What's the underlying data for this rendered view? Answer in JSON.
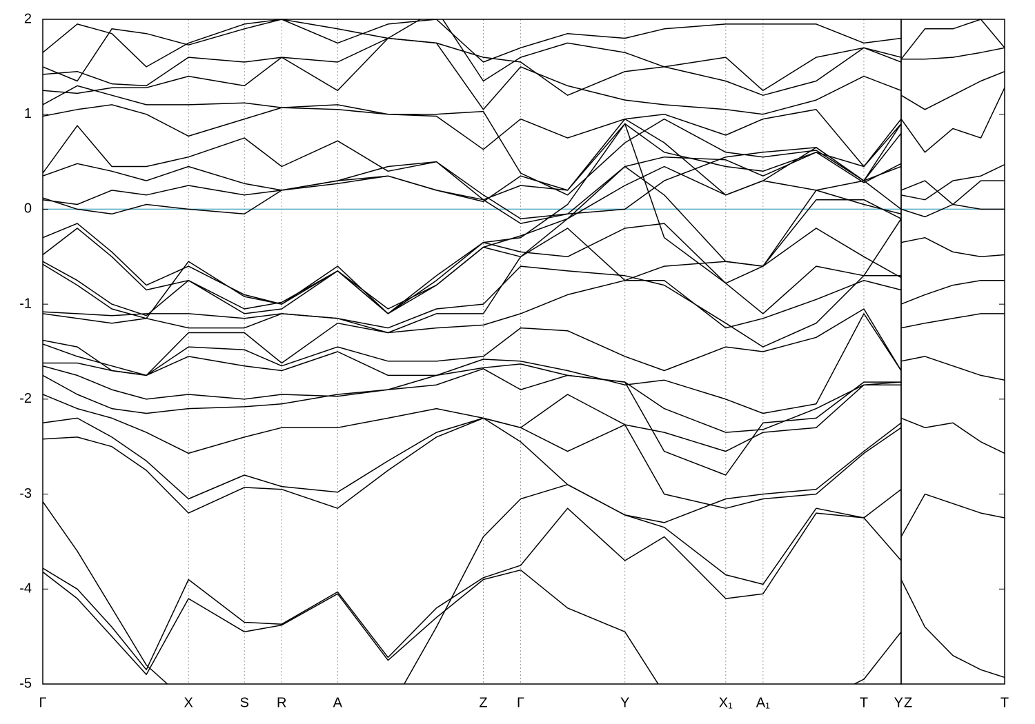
{
  "chart_data": [
    {
      "type": "line",
      "color": "#000000",
      "grid": true,
      "hline": 0,
      "hline_color": "#5aaec8",
      "x": [
        0,
        0.5,
        1.0,
        1.5,
        2.11,
        2.92,
        3.46,
        4.27,
        5.0,
        5.7,
        6.38,
        6.92,
        7.6,
        8.43,
        9.0,
        9.89,
        10.43,
        11.2,
        11.89,
        12.43
      ],
      "xlim": [
        0,
        12.43
      ],
      "xticks": [
        {
          "value": 0,
          "label": "Γ"
        },
        {
          "value": 2.11,
          "label": "X"
        },
        {
          "value": 2.92,
          "label": "S"
        },
        {
          "value": 3.46,
          "label": "R"
        },
        {
          "value": 4.27,
          "label": "A"
        },
        {
          "value": 6.38,
          "label": "Z"
        },
        {
          "value": 6.92,
          "label": "Γ"
        },
        {
          "value": 8.43,
          "label": "Y"
        },
        {
          "value": 9.89,
          "label": "X₁"
        },
        {
          "value": 10.43,
          "label": "A₁"
        },
        {
          "value": 11.89,
          "label": "T"
        },
        {
          "value": 12.43,
          "label": "Y"
        }
      ],
      "ylim": [
        -5,
        2
      ],
      "yticks": [
        -5,
        -4,
        -3,
        -2,
        -1,
        0,
        1,
        2
      ],
      "series": [
        {
          "values": [
            -3.82,
            -4.1,
            -4.5,
            -4.9,
            -4.1,
            -4.45,
            -4.38,
            -4.05,
            -4.75,
            -4.3,
            -3.9,
            -3.8,
            -4.2,
            -4.45,
            -5.1,
            -5.5,
            -5.5,
            -5.2,
            -4.95,
            -4.45
          ]
        },
        {
          "values": [
            -3.78,
            -4.0,
            -4.4,
            -4.85,
            -3.9,
            -4.35,
            -4.37,
            -4.03,
            -4.72,
            -4.2,
            -3.88,
            -3.75,
            -3.15,
            -3.7,
            -3.45,
            -4.1,
            -4.05,
            -3.2,
            -3.25,
            -3.7
          ]
        },
        {
          "values": [
            -3.08,
            -3.6,
            -4.2,
            -4.8,
            -5.2,
            -5.5,
            -5.5,
            -5.5,
            -5.3,
            -4.4,
            -3.45,
            -3.05,
            -2.9,
            -3.22,
            -3.35,
            -3.85,
            -3.95,
            -3.15,
            -3.25,
            -2.95
          ]
        },
        {
          "values": [
            -2.42,
            -2.4,
            -2.5,
            -2.75,
            -3.2,
            -2.93,
            -2.95,
            -3.15,
            -2.75,
            -2.4,
            -2.2,
            -2.45,
            -2.9,
            -3.22,
            -3.3,
            -3.05,
            -3.0,
            -2.95,
            -2.55,
            -2.25
          ]
        },
        {
          "values": [
            -2.25,
            -2.2,
            -2.4,
            -2.65,
            -3.05,
            -2.8,
            -2.92,
            -2.98,
            -2.65,
            -2.35,
            -2.2,
            -2.3,
            -2.55,
            -2.27,
            -3.0,
            -3.15,
            -3.05,
            -3.0,
            -2.57,
            -2.3
          ]
        },
        {
          "values": [
            -1.95,
            -2.1,
            -2.2,
            -2.35,
            -2.57,
            -2.4,
            -2.3,
            -2.3,
            -2.2,
            -2.1,
            -2.2,
            -2.3,
            -1.95,
            -2.27,
            -2.35,
            -2.55,
            -2.35,
            -2.3,
            -1.85,
            -1.85
          ]
        },
        {
          "values": [
            -1.75,
            -1.95,
            -2.1,
            -2.15,
            -2.1,
            -2.08,
            -2.05,
            -1.95,
            -1.9,
            -1.85,
            -1.68,
            -1.9,
            -1.75,
            -1.82,
            -2.55,
            -2.8,
            -2.25,
            -2.2,
            -1.82,
            -1.82
          ]
        },
        {
          "values": [
            -1.65,
            -1.75,
            -1.9,
            -2.0,
            -1.95,
            -2.0,
            -1.95,
            -1.97,
            -1.9,
            -1.75,
            -1.67,
            -1.63,
            -1.75,
            -1.82,
            -2.1,
            -2.35,
            -2.32,
            -2.1,
            -1.85,
            -1.82
          ]
        },
        {
          "values": [
            -1.62,
            -1.62,
            -1.7,
            -1.75,
            -1.55,
            -1.65,
            -1.7,
            -1.5,
            -1.75,
            -1.75,
            -1.58,
            -1.6,
            -1.7,
            -1.85,
            -1.8,
            -2.0,
            -2.15,
            -2.05,
            -1.1,
            -1.7
          ]
        },
        {
          "values": [
            -1.42,
            -1.55,
            -1.65,
            -1.75,
            -1.45,
            -1.48,
            -1.65,
            -1.45,
            -1.6,
            -1.6,
            -1.55,
            -1.25,
            -1.28,
            -1.55,
            -1.7,
            -1.45,
            -1.5,
            -1.35,
            -1.05,
            -1.7
          ]
        },
        {
          "values": [
            -1.38,
            -1.45,
            -1.7,
            -1.75,
            -1.3,
            -1.3,
            -1.62,
            -1.2,
            -1.3,
            -1.25,
            -1.22,
            -1.1,
            -0.9,
            -0.75,
            -0.75,
            -1.25,
            -1.15,
            -0.95,
            -0.75,
            -0.85
          ]
        },
        {
          "values": [
            -1.1,
            -1.15,
            -1.2,
            -1.15,
            -1.25,
            -1.25,
            -1.1,
            -1.15,
            -1.25,
            -1.05,
            -1.0,
            -0.6,
            -0.65,
            -0.7,
            -0.8,
            -1.2,
            -1.45,
            -1.2,
            -0.7,
            -0.7
          ]
        },
        {
          "values": [
            -1.08,
            -1.1,
            -1.12,
            -1.1,
            -1.1,
            -1.15,
            -1.1,
            -1.15,
            -1.3,
            -1.1,
            -1.1,
            -0.5,
            -0.2,
            -0.75,
            -0.6,
            -0.55,
            -0.6,
            -0.2,
            -0.5,
            -0.72
          ]
        },
        {
          "values": [
            -0.58,
            -0.8,
            -1.05,
            -1.15,
            -0.55,
            -0.92,
            -1.0,
            -0.6,
            -1.1,
            -0.7,
            -0.35,
            -0.45,
            -0.5,
            -0.2,
            -0.15,
            -0.78,
            -0.6,
            0.1,
            0.1,
            -0.1
          ]
        },
        {
          "values": [
            -0.55,
            -0.75,
            -1.0,
            -1.12,
            -0.75,
            -1.05,
            -0.98,
            -0.65,
            -1.05,
            -0.8,
            -0.4,
            -0.28,
            -0.1,
            0.25,
            0.45,
            0.15,
            0.3,
            0.2,
            0.05,
            -0.05
          ]
        },
        {
          "values": [
            -0.48,
            -0.2,
            -0.5,
            -0.85,
            -0.75,
            -1.1,
            -1.05,
            -0.65,
            -1.1,
            -0.75,
            -0.35,
            -0.3,
            0.05,
            0.9,
            -0.3,
            -0.78,
            -1.1,
            -0.6,
            -0.7,
            -0.1
          ]
        },
        {
          "values": [
            -0.3,
            -0.15,
            -0.45,
            -0.8,
            -0.6,
            -0.9,
            -1.0,
            -0.65,
            -1.1,
            -0.8,
            -0.4,
            -0.5,
            -0.1,
            0.45,
            0.15,
            -0.55,
            -0.6,
            0.2,
            0.3,
            0.9
          ]
        },
        {
          "values": [
            0.12,
            0.0,
            -0.05,
            0.05,
            0.0,
            -0.05,
            0.2,
            0.27,
            0.35,
            0.2,
            0.1,
            -0.15,
            -0.05,
            0.0,
            0.3,
            0.55,
            0.6,
            0.65,
            0.3,
            0.0
          ]
        },
        {
          "values": [
            0.1,
            0.05,
            0.2,
            0.15,
            0.25,
            0.15,
            0.2,
            0.3,
            0.35,
            0.2,
            0.08,
            0.35,
            0.2,
            0.95,
            0.7,
            0.15,
            0.3,
            0.65,
            0.3,
            0.8
          ]
        },
        {
          "values": [
            0.35,
            0.48,
            0.4,
            0.3,
            0.45,
            0.27,
            0.2,
            0.3,
            0.45,
            0.5,
            0.1,
            0.25,
            0.2,
            0.9,
            0.6,
            0.45,
            0.4,
            0.6,
            0.45,
            0.9
          ]
        },
        {
          "values": [
            0.38,
            0.88,
            0.45,
            0.45,
            0.55,
            0.75,
            0.45,
            0.72,
            0.4,
            0.5,
            0.15,
            -0.1,
            -0.05,
            0.45,
            0.55,
            0.52,
            0.35,
            0.6,
            0.28,
            0.48
          ]
        },
        {
          "values": [
            0.98,
            1.05,
            1.1,
            1.0,
            0.77,
            0.95,
            1.07,
            1.05,
            1.0,
            0.98,
            0.63,
            0.95,
            0.75,
            0.95,
            1.0,
            0.78,
            0.95,
            1.05,
            0.45,
            0.95
          ]
        },
        {
          "values": [
            1.1,
            1.3,
            1.2,
            1.1,
            1.1,
            1.12,
            1.07,
            1.1,
            1.0,
            1.0,
            1.03,
            0.38,
            0.15,
            0.7,
            0.95,
            0.6,
            0.55,
            0.62,
            0.3,
            0.45
          ]
        },
        {
          "values": [
            1.25,
            1.22,
            1.28,
            1.28,
            1.4,
            1.3,
            1.6,
            1.25,
            1.8,
            1.75,
            1.05,
            1.5,
            1.3,
            1.15,
            1.1,
            1.05,
            1.0,
            1.15,
            1.4,
            1.25
          ]
        },
        {
          "values": [
            1.42,
            1.45,
            1.32,
            1.3,
            1.6,
            1.55,
            1.6,
            1.55,
            1.8,
            1.75,
            1.6,
            1.55,
            1.2,
            1.45,
            1.5,
            1.35,
            1.2,
            1.35,
            1.7,
            1.55
          ]
        },
        {
          "values": [
            1.5,
            1.35,
            1.9,
            1.85,
            1.73,
            1.9,
            2.0,
            1.9,
            1.8,
            2.1,
            1.35,
            1.6,
            1.75,
            1.65,
            1.5,
            1.6,
            1.25,
            1.6,
            1.7,
            1.6
          ]
        },
        {
          "values": [
            1.65,
            1.95,
            1.85,
            1.5,
            1.75,
            1.95,
            2.0,
            1.75,
            1.95,
            2.0,
            1.55,
            1.7,
            1.85,
            1.8,
            1.9,
            1.95,
            1.95,
            1.95,
            1.75,
            1.8
          ]
        }
      ]
    },
    {
      "type": "line",
      "color": "#000000",
      "grid": true,
      "hline": 0,
      "hline_color": "#5aaec8",
      "x": [
        12.46,
        12.8,
        13.2,
        13.6,
        13.94
      ],
      "xlim": [
        12.46,
        13.94
      ],
      "xticks": [
        {
          "value": 12.46,
          "label": "Z"
        },
        {
          "value": 13.94,
          "label": "T"
        }
      ],
      "ylim": [
        -5,
        2
      ],
      "series": [
        {
          "values": [
            -3.9,
            -4.4,
            -4.7,
            -4.85,
            -4.93
          ]
        },
        {
          "values": [
            -3.45,
            -3.0,
            -3.1,
            -3.2,
            -3.25
          ]
        },
        {
          "values": [
            -2.2,
            -2.3,
            -2.25,
            -2.45,
            -2.57
          ]
        },
        {
          "values": [
            -1.6,
            -1.55,
            -1.65,
            -1.75,
            -1.8
          ]
        },
        {
          "values": [
            -1.25,
            -1.2,
            -1.15,
            -1.1,
            -1.1
          ]
        },
        {
          "values": [
            -1.0,
            -0.9,
            -0.8,
            -0.75,
            -0.75
          ]
        },
        {
          "values": [
            -0.35,
            -0.3,
            -0.45,
            -0.5,
            -0.48
          ]
        },
        {
          "values": [
            0.0,
            -0.08,
            0.05,
            0.0,
            0.0
          ]
        },
        {
          "values": [
            0.2,
            0.3,
            0.05,
            0.3,
            0.3
          ]
        },
        {
          "values": [
            0.15,
            0.1,
            0.3,
            0.35,
            0.47
          ]
        },
        {
          "values": [
            0.95,
            0.6,
            0.85,
            0.75,
            1.28
          ]
        },
        {
          "values": [
            1.2,
            1.05,
            1.2,
            1.35,
            1.45
          ]
        },
        {
          "values": [
            1.58,
            1.58,
            1.6,
            1.65,
            1.7
          ]
        },
        {
          "values": [
            1.58,
            1.9,
            1.9,
            2.0,
            1.7
          ]
        }
      ]
    }
  ]
}
